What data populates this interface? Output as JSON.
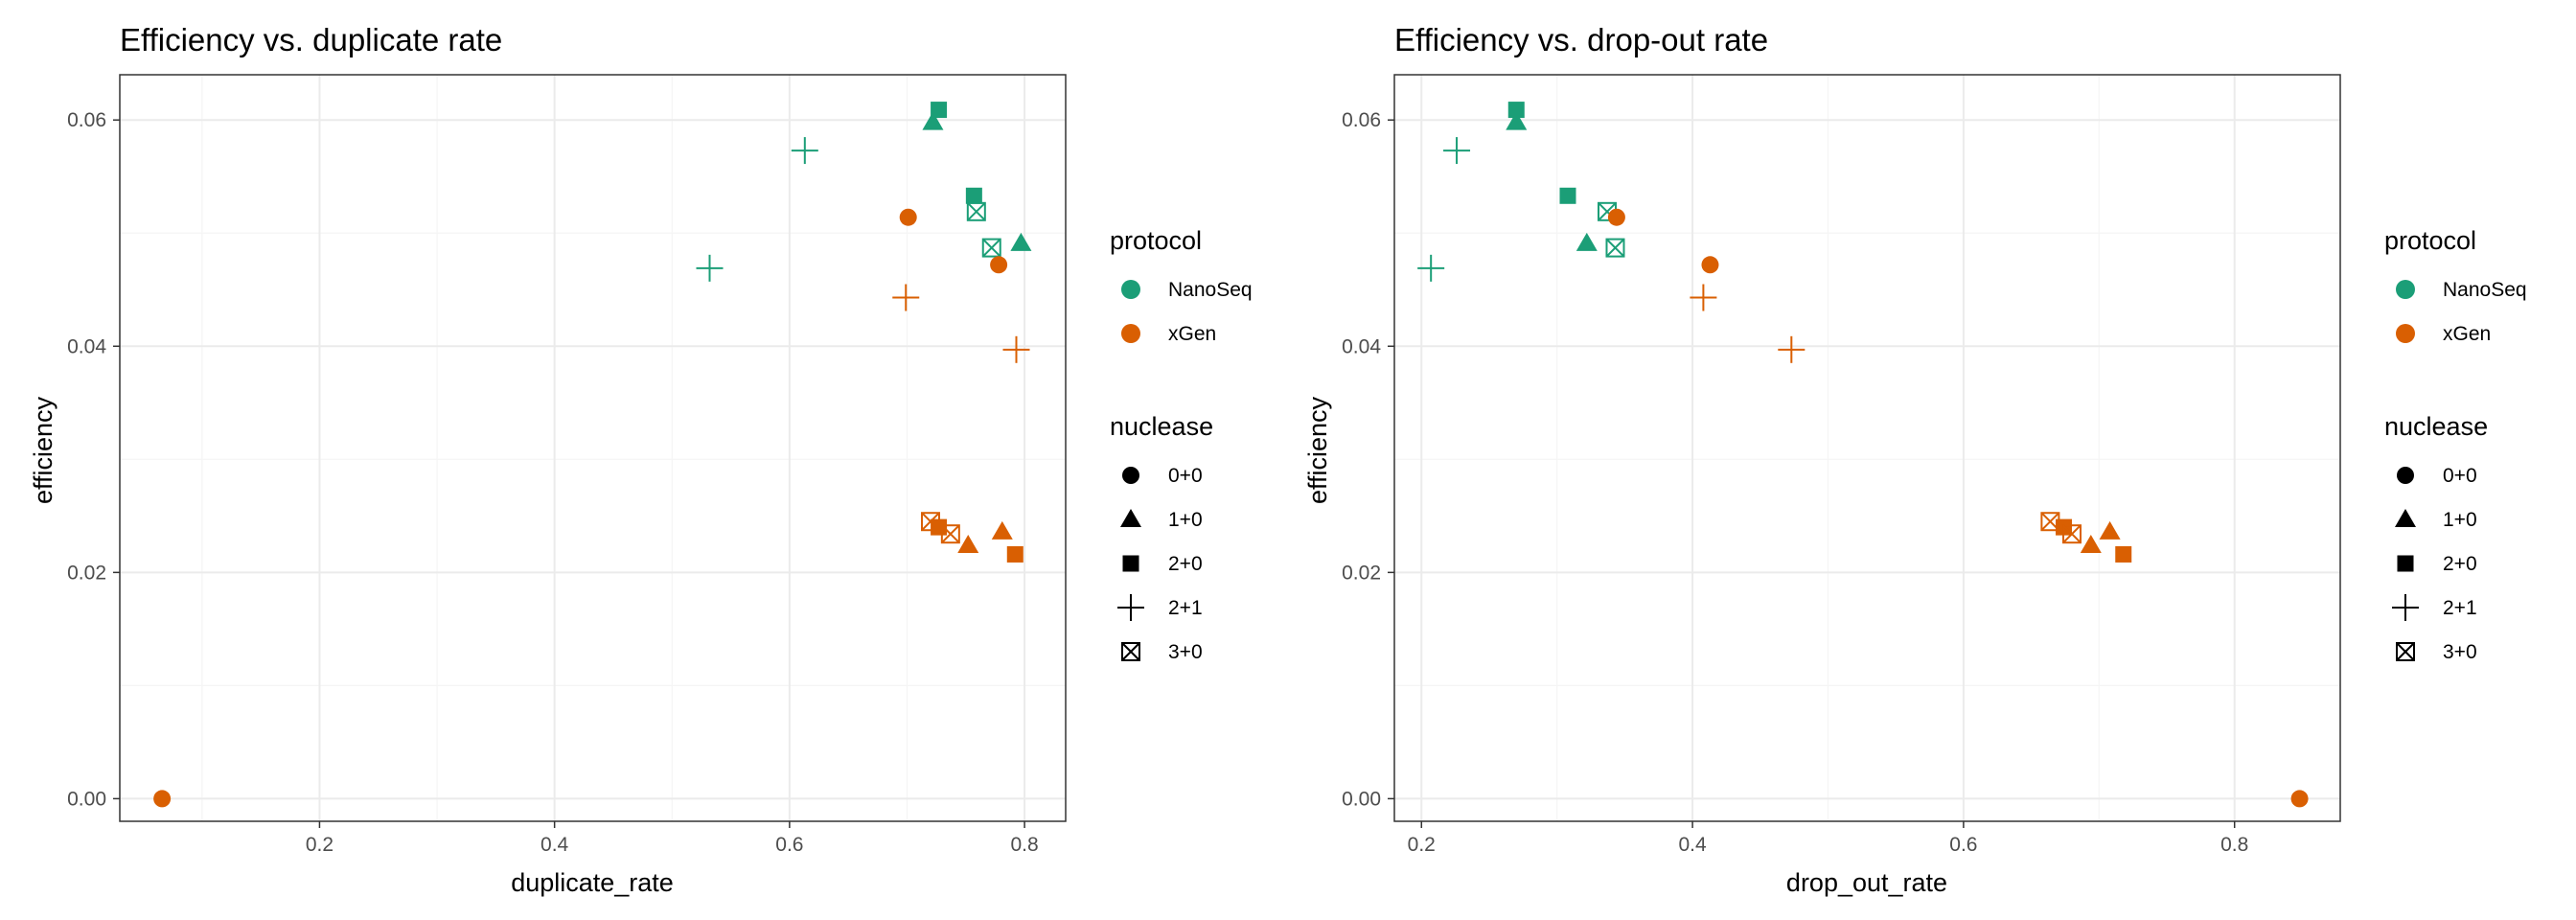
{
  "colors": {
    "NanoSeq": "#1b9e77",
    "xGen": "#d95f02",
    "panel_border": "#333333",
    "grid_major": "#ebebeb",
    "grid_minor": "#f5f5f5",
    "tick_label": "#4d4d4d"
  },
  "legend": {
    "protocol_title": "protocol",
    "protocol_items": [
      {
        "label": "NanoSeq",
        "color": "#1b9e77"
      },
      {
        "label": "xGen",
        "color": "#d95f02"
      }
    ],
    "nuclease_title": "nuclease",
    "nuclease_items": [
      {
        "label": "0+0",
        "shape": "circle"
      },
      {
        "label": "1+0",
        "shape": "triangle"
      },
      {
        "label": "2+0",
        "shape": "square"
      },
      {
        "label": "2+1",
        "shape": "plus"
      },
      {
        "label": "3+0",
        "shape": "boxcross"
      }
    ]
  },
  "chart_data": [
    {
      "type": "scatter",
      "title": "Efficiency vs. duplicate rate",
      "xlabel": "duplicate_rate",
      "ylabel": "efficiency",
      "xlim": [
        0.03,
        0.835
      ],
      "ylim": [
        -0.002,
        0.064
      ],
      "xticks": [
        0.2,
        0.4,
        0.6,
        0.8
      ],
      "xtick_labels": [
        "0.2",
        "0.4",
        "0.6",
        "0.8"
      ],
      "yticks": [
        0.0,
        0.02,
        0.04,
        0.06
      ],
      "ytick_labels": [
        "0.00",
        "0.02",
        "0.04",
        "0.06"
      ],
      "grid": true,
      "points": [
        {
          "protocol": "NanoSeq",
          "nuclease": "2+0",
          "x": 0.727,
          "y": 0.0609
        },
        {
          "protocol": "NanoSeq",
          "nuclease": "1+0",
          "x": 0.722,
          "y": 0.0598
        },
        {
          "protocol": "NanoSeq",
          "nuclease": "2+1",
          "x": 0.613,
          "y": 0.0573
        },
        {
          "protocol": "NanoSeq",
          "nuclease": "2+0",
          "x": 0.757,
          "y": 0.0533
        },
        {
          "protocol": "NanoSeq",
          "nuclease": "3+0",
          "x": 0.759,
          "y": 0.0519
        },
        {
          "protocol": "NanoSeq",
          "nuclease": "3+0",
          "x": 0.772,
          "y": 0.0487
        },
        {
          "protocol": "NanoSeq",
          "nuclease": "1+0",
          "x": 0.797,
          "y": 0.0491
        },
        {
          "protocol": "NanoSeq",
          "nuclease": "2+1",
          "x": 0.532,
          "y": 0.0469
        },
        {
          "protocol": "xGen",
          "nuclease": "0+0",
          "x": 0.701,
          "y": 0.0514
        },
        {
          "protocol": "xGen",
          "nuclease": "0+0",
          "x": 0.778,
          "y": 0.0472
        },
        {
          "protocol": "xGen",
          "nuclease": "2+1",
          "x": 0.699,
          "y": 0.0443
        },
        {
          "protocol": "xGen",
          "nuclease": "2+1",
          "x": 0.793,
          "y": 0.0397
        },
        {
          "protocol": "xGen",
          "nuclease": "3+0",
          "x": 0.72,
          "y": 0.0245
        },
        {
          "protocol": "xGen",
          "nuclease": "2+0",
          "x": 0.727,
          "y": 0.024
        },
        {
          "protocol": "xGen",
          "nuclease": "3+0",
          "x": 0.737,
          "y": 0.0234
        },
        {
          "protocol": "xGen",
          "nuclease": "1+0",
          "x": 0.752,
          "y": 0.0224
        },
        {
          "protocol": "xGen",
          "nuclease": "1+0",
          "x": 0.781,
          "y": 0.0236
        },
        {
          "protocol": "xGen",
          "nuclease": "2+0",
          "x": 0.792,
          "y": 0.0216
        },
        {
          "protocol": "xGen",
          "nuclease": "0+0",
          "x": 0.066,
          "y": 0.0
        }
      ]
    },
    {
      "type": "scatter",
      "title": "Efficiency vs. drop-out rate",
      "xlabel": "drop_out_rate",
      "ylabel": "efficiency",
      "xlim": [
        0.18,
        0.878
      ],
      "ylim": [
        -0.002,
        0.064
      ],
      "xticks": [
        0.2,
        0.4,
        0.6,
        0.8
      ],
      "xtick_labels": [
        "0.2",
        "0.4",
        "0.6",
        "0.8"
      ],
      "yticks": [
        0.0,
        0.02,
        0.04,
        0.06
      ],
      "ytick_labels": [
        "0.00",
        "0.02",
        "0.04",
        "0.06"
      ],
      "grid": true,
      "points": [
        {
          "protocol": "NanoSeq",
          "nuclease": "2+0",
          "x": 0.27,
          "y": 0.0609
        },
        {
          "protocol": "NanoSeq",
          "nuclease": "1+0",
          "x": 0.27,
          "y": 0.0598
        },
        {
          "protocol": "NanoSeq",
          "nuclease": "2+1",
          "x": 0.226,
          "y": 0.0573
        },
        {
          "protocol": "NanoSeq",
          "nuclease": "2+0",
          "x": 0.308,
          "y": 0.0533
        },
        {
          "protocol": "NanoSeq",
          "nuclease": "3+0",
          "x": 0.337,
          "y": 0.0519
        },
        {
          "protocol": "NanoSeq",
          "nuclease": "3+0",
          "x": 0.343,
          "y": 0.0487
        },
        {
          "protocol": "NanoSeq",
          "nuclease": "1+0",
          "x": 0.322,
          "y": 0.0491
        },
        {
          "protocol": "NanoSeq",
          "nuclease": "2+1",
          "x": 0.207,
          "y": 0.0469
        },
        {
          "protocol": "xGen",
          "nuclease": "0+0",
          "x": 0.344,
          "y": 0.0514
        },
        {
          "protocol": "xGen",
          "nuclease": "0+0",
          "x": 0.413,
          "y": 0.0472
        },
        {
          "protocol": "xGen",
          "nuclease": "2+1",
          "x": 0.408,
          "y": 0.0443
        },
        {
          "protocol": "xGen",
          "nuclease": "2+1",
          "x": 0.473,
          "y": 0.0397
        },
        {
          "protocol": "xGen",
          "nuclease": "3+0",
          "x": 0.664,
          "y": 0.0245
        },
        {
          "protocol": "xGen",
          "nuclease": "2+0",
          "x": 0.674,
          "y": 0.024
        },
        {
          "protocol": "xGen",
          "nuclease": "3+0",
          "x": 0.68,
          "y": 0.0234
        },
        {
          "protocol": "xGen",
          "nuclease": "1+0",
          "x": 0.694,
          "y": 0.0224
        },
        {
          "protocol": "xGen",
          "nuclease": "1+0",
          "x": 0.708,
          "y": 0.0236
        },
        {
          "protocol": "xGen",
          "nuclease": "2+0",
          "x": 0.718,
          "y": 0.0216
        },
        {
          "protocol": "xGen",
          "nuclease": "0+0",
          "x": 0.848,
          "y": 0.0
        }
      ]
    }
  ]
}
